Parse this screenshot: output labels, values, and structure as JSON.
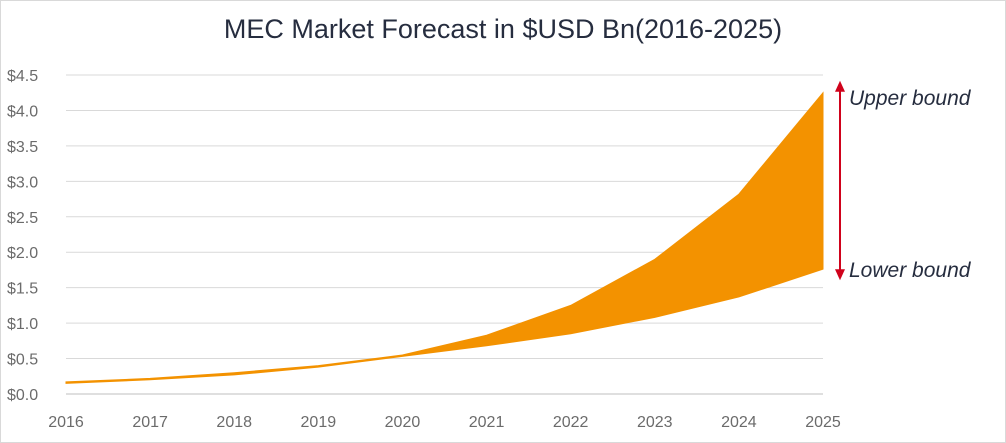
{
  "chart_data": {
    "type": "area",
    "title": "MEC Market Forecast in $USD Bn(2016-2025)",
    "xlabel": "",
    "ylabel": "",
    "x": [
      "2016",
      "2017",
      "2018",
      "2019",
      "2020",
      "2021",
      "2022",
      "2023",
      "2024",
      "2025"
    ],
    "series": [
      {
        "name": "Upper bound",
        "values": [
          0.17,
          0.22,
          0.3,
          0.4,
          0.55,
          0.83,
          1.25,
          1.9,
          2.82,
          4.25
        ]
      },
      {
        "name": "Lower bound",
        "values": [
          0.15,
          0.2,
          0.27,
          0.38,
          0.53,
          0.68,
          0.85,
          1.08,
          1.37,
          1.76
        ]
      }
    ],
    "ylim": [
      0,
      4.5
    ],
    "yticks": [
      0,
      0.5,
      1.0,
      1.5,
      2.0,
      2.5,
      3.0,
      3.5,
      4.0,
      4.5
    ],
    "ytick_labels": [
      "$0.0",
      "$0.5",
      "$1.0",
      "$1.5",
      "$2.0",
      "$2.5",
      "$3.0",
      "$3.5",
      "$4.0",
      "$4.5"
    ],
    "grid": true,
    "fill_color": "#f39200",
    "arrow_color": "#d0021b",
    "annotations": {
      "upper": "Upper bound",
      "lower": "Lower bound"
    }
  }
}
